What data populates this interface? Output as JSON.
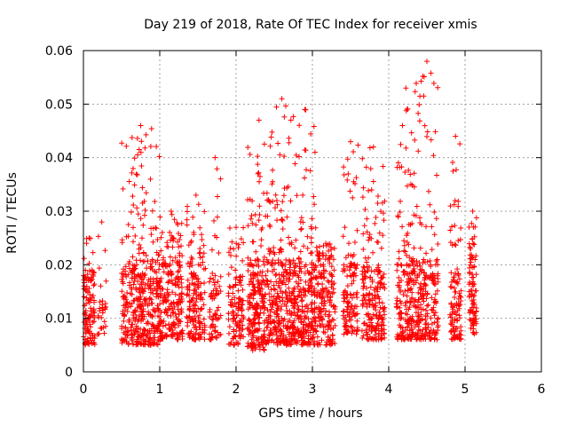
{
  "chart_data": {
    "type": "scatter",
    "title": "Day 219 of 2018, Rate Of TEC Index for receiver xmis",
    "xlabel": "GPS time / hours",
    "ylabel": "ROTI / TECUs",
    "xlim": [
      0,
      6
    ],
    "ylim": [
      0,
      0.06
    ],
    "xticks": [
      0,
      1,
      2,
      3,
      4,
      5,
      6
    ],
    "xtick_labels": [
      "0",
      "1",
      "2",
      "3",
      "4",
      "5",
      "6"
    ],
    "yticks": [
      0,
      0.01,
      0.02,
      0.03,
      0.04,
      0.05,
      0.06
    ],
    "ytick_labels": [
      "0",
      "0.01",
      "0.02",
      "0.03",
      "0.04",
      "0.05",
      "0.06"
    ],
    "grid": true,
    "marker": "+",
    "marker_color": "#ff0000",
    "series": [
      {
        "name": "ROTI",
        "clusters": [
          {
            "x": [
              0.0,
              0.15
            ],
            "y_core": [
              0.005,
              0.017
            ],
            "y_max": 0.025,
            "n": 120
          },
          {
            "x": [
              0.18,
              0.3
            ],
            "y_core": [
              0.007,
              0.014
            ],
            "y_max": 0.028,
            "n": 30
          },
          {
            "x": [
              0.5,
              1.0
            ],
            "y_core": [
              0.005,
              0.02
            ],
            "y_max": 0.046,
            "n": 420
          },
          {
            "x": [
              1.0,
              1.3
            ],
            "y_core": [
              0.006,
              0.02
            ],
            "y_max": 0.03,
            "n": 220
          },
          {
            "x": [
              1.35,
              1.6
            ],
            "y_core": [
              0.006,
              0.02
            ],
            "y_max": 0.033,
            "n": 160
          },
          {
            "x": [
              1.65,
              1.8
            ],
            "y_core": [
              0.006,
              0.018
            ],
            "y_max": 0.04,
            "n": 70
          },
          {
            "x": [
              1.9,
              2.1
            ],
            "y_core": [
              0.005,
              0.017
            ],
            "y_max": 0.027,
            "n": 120
          },
          {
            "x": [
              2.15,
              2.45
            ],
            "y_core": [
              0.004,
              0.02
            ],
            "y_max": 0.047,
            "n": 280
          },
          {
            "x": [
              2.45,
              2.75
            ],
            "y_core": [
              0.005,
              0.02
            ],
            "y_max": 0.051,
            "n": 260
          },
          {
            "x": [
              2.75,
              3.05
            ],
            "y_core": [
              0.005,
              0.02
            ],
            "y_max": 0.049,
            "n": 260
          },
          {
            "x": [
              3.05,
              3.3
            ],
            "y_core": [
              0.005,
              0.021
            ],
            "y_max": 0.024,
            "n": 180
          },
          {
            "x": [
              3.4,
              3.6
            ],
            "y_core": [
              0.007,
              0.02
            ],
            "y_max": 0.043,
            "n": 130
          },
          {
            "x": [
              3.65,
              3.95
            ],
            "y_core": [
              0.006,
              0.019
            ],
            "y_max": 0.042,
            "n": 220
          },
          {
            "x": [
              4.1,
              4.35
            ],
            "y_core": [
              0.006,
              0.02
            ],
            "y_max": 0.053,
            "n": 200
          },
          {
            "x": [
              4.35,
              4.65
            ],
            "y_core": [
              0.006,
              0.02
            ],
            "y_max": 0.058,
            "n": 220
          },
          {
            "x": [
              4.8,
              4.95
            ],
            "y_core": [
              0.006,
              0.018
            ],
            "y_max": 0.044,
            "n": 110
          },
          {
            "x": [
              5.05,
              5.15
            ],
            "y_core": [
              0.007,
              0.023
            ],
            "y_max": 0.03,
            "n": 90
          }
        ]
      }
    ]
  }
}
